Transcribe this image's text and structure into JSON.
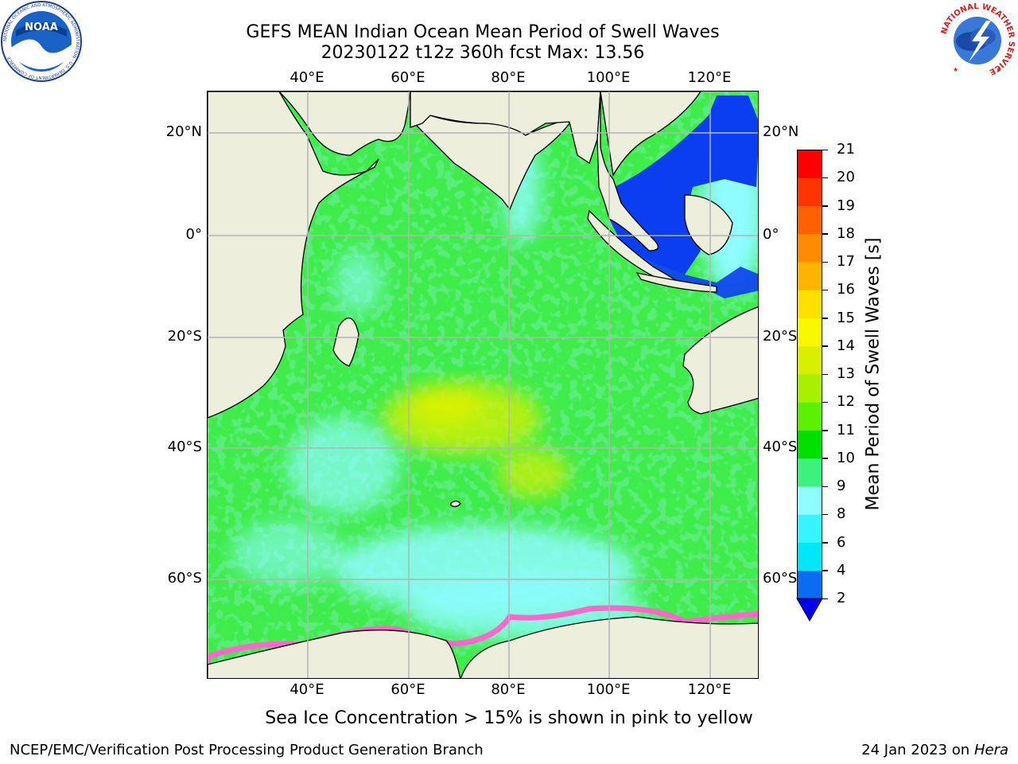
{
  "title_line1": "GEFS MEAN Indian Ocean Mean Period of Swell Waves",
  "title_line2": "20230122 t12z 360h fcst   Max: 13.56",
  "lon_ticks": [
    "40°E",
    "60°E",
    "80°E",
    "100°E",
    "120°E"
  ],
  "lat_ticks": [
    "20°N",
    "0°",
    "20°S",
    "40°S",
    "60°S"
  ],
  "colorbar": {
    "label": "Mean Period of Swell Waves [s]",
    "ticks": [
      "2",
      "4",
      "6",
      "8",
      "9",
      "10",
      "11",
      "12",
      "13",
      "14",
      "15",
      "16",
      "17",
      "18",
      "19",
      "20",
      "21"
    ],
    "colors": [
      "#0a6cf0",
      "#00e8f8",
      "#38f4ff",
      "#8ffcff",
      "#3cf27c",
      "#00e000",
      "#5cf000",
      "#a8f000",
      "#d8f000",
      "#f8f800",
      "#ffe000",
      "#ffb400",
      "#ff8c00",
      "#ff6000",
      "#ff3400",
      "#ff0000"
    ],
    "under_color": "#0000ee"
  },
  "colors": {
    "land": "#eeeedc",
    "grid": "#b4b4b4",
    "ocean_main": "#3fec4a",
    "swell_low": "#8ffcff",
    "swell_high": "#d8f000",
    "short_period": "#0a3ef0",
    "sea_ice": "#ff66cc"
  },
  "note": "Sea Ice Concentration > 15% is shown in pink to yellow",
  "footer_left": "NCEP/EMC/Verification Post Processing Product Generation Branch",
  "footer_date": "24 Jan 2023 on",
  "footer_host": "Hera",
  "logos": {
    "noaa_text": "NOAA",
    "noaa_ring": "NATIONAL OCEANIC AND ATMOSPHERIC ADMINISTRATION · U.S. DEPARTMENT OF COMMERCE",
    "nws_ring": "NATIONAL WEATHER SERVICE"
  }
}
